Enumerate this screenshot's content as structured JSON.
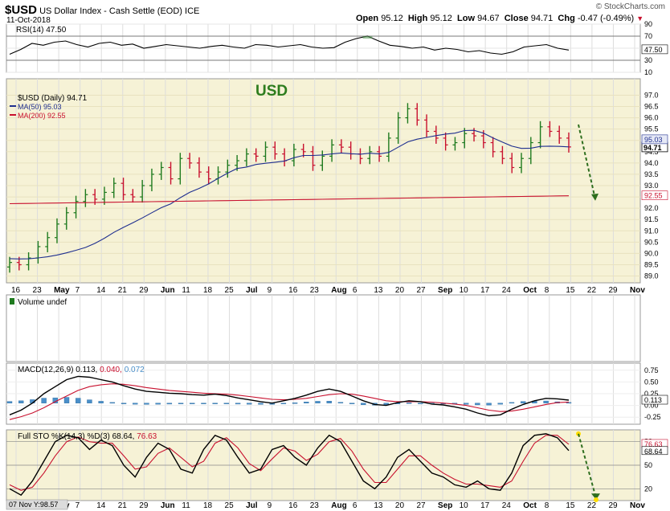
{
  "header": {
    "symbol": "$USD",
    "name": "US Dollar Index - Cash Settle (EOD)",
    "exchange": "ICE",
    "date": "11-Oct-2018",
    "watermark": "© StockCharts.com",
    "ohlc": {
      "open_label": "Open",
      "open": "95.12",
      "high_label": "High",
      "high": "95.12",
      "low_label": "Low",
      "low": "94.67",
      "close_label": "Close",
      "close": "94.71",
      "chg_label": "Chg",
      "chg": "-0.47 (-0.49%)"
    }
  },
  "annotation": {
    "text": "USD",
    "color": "#2e7d1e"
  },
  "colors": {
    "up": "#1e7a1e",
    "down": "#c8102e",
    "ma50": "#1f2f8f",
    "ma200": "#c8102e",
    "macd_hist": "#4a8fc9",
    "bg_price": "#f6f2d6",
    "bg_panel": "#ffffff"
  },
  "chart_data": [
    {
      "type": "line",
      "panel": "RSI",
      "title": "RSI(14) 47.50",
      "ylim": [
        10,
        90
      ],
      "yticks": [
        90,
        70,
        50,
        30,
        10
      ],
      "reference_lines": [
        70,
        30
      ],
      "last_label": "47.50",
      "series": [
        {
          "name": "RSI(14)",
          "values": [
            40,
            48,
            58,
            55,
            60,
            62,
            56,
            52,
            58,
            60,
            55,
            57,
            50,
            53,
            56,
            54,
            52,
            50,
            53,
            55,
            52,
            50,
            56,
            55,
            52,
            54,
            56,
            52,
            50,
            51,
            60,
            66,
            70,
            62,
            55,
            53,
            50,
            52,
            47,
            50,
            48,
            44,
            46,
            42,
            40,
            44,
            52,
            54,
            56,
            50,
            47
          ]
        }
      ]
    },
    {
      "type": "bar",
      "panel": "Price",
      "title": "$USD (Daily) 94.71",
      "ylim": [
        88.7,
        97.3
      ],
      "yticks": [
        97.0,
        96.5,
        96.0,
        95.5,
        95.0,
        94.5,
        94.0,
        93.5,
        93.0,
        92.5,
        92.0,
        91.5,
        91.0,
        90.5,
        90.0,
        89.5,
        89.0
      ],
      "x_tick_labels": [
        "16",
        "23",
        "May",
        "7",
        "14",
        "21",
        "29",
        "Jun",
        "11",
        "18",
        "25",
        "Jul",
        "9",
        "16",
        "23",
        "Aug",
        "6",
        "13",
        "20",
        "27",
        "Sep",
        "10",
        "17",
        "24",
        "Oct",
        "8",
        "15",
        "22",
        "29",
        "Nov"
      ],
      "series": [
        {
          "name": "$USD (Daily)",
          "last": "94.71",
          "closes": [
            89.6,
            89.5,
            89.8,
            90.3,
            90.7,
            91.3,
            91.8,
            92.3,
            92.6,
            92.4,
            92.7,
            93.1,
            92.6,
            92.5,
            93.0,
            93.5,
            93.8,
            93.3,
            94.2,
            94.0,
            93.6,
            93.3,
            93.6,
            93.9,
            94.1,
            94.4,
            94.3,
            94.7,
            94.4,
            94.1,
            94.6,
            94.5,
            93.9,
            94.3,
            94.8,
            94.7,
            94.4,
            94.2,
            94.5,
            94.3,
            95.1,
            96.0,
            96.4,
            95.9,
            95.4,
            95.1,
            94.8,
            94.9,
            95.3,
            95.2,
            94.9,
            94.5,
            94.2,
            93.8,
            94.2,
            94.9,
            95.6,
            95.4,
            95.1,
            94.71
          ]
        },
        {
          "name": "MA(50)",
          "last": "95.03"
        },
        {
          "name": "MA(200)",
          "last": "92.55"
        }
      ]
    },
    {
      "type": "bar",
      "panel": "Volume",
      "title": "Volume undef"
    },
    {
      "type": "line",
      "panel": "MACD",
      "title": "MACD(12,26,9)",
      "values_label": [
        "0.113",
        "0.040",
        "0.072"
      ],
      "ylim": [
        -0.4,
        0.9
      ],
      "yticks": [
        0.75,
        0.5,
        0.25,
        0.0,
        -0.25
      ],
      "last_label": "0.113",
      "series": [
        {
          "name": "MACD",
          "values": [
            -0.2,
            -0.1,
            0.05,
            0.25,
            0.4,
            0.55,
            0.62,
            0.6,
            0.55,
            0.5,
            0.42,
            0.35,
            0.3,
            0.28,
            0.26,
            0.25,
            0.23,
            0.22,
            0.24,
            0.21,
            0.16,
            0.12,
            0.08,
            0.05,
            0.1,
            0.15,
            0.22,
            0.3,
            0.35,
            0.3,
            0.2,
            0.1,
            0.02,
            0.0,
            0.06,
            0.1,
            0.08,
            0.03,
            0.01,
            -0.03,
            -0.08,
            -0.16,
            -0.22,
            -0.2,
            -0.08,
            0.02,
            0.1,
            0.15,
            0.14,
            0.113
          ]
        },
        {
          "name": "Signal",
          "values": [
            -0.3,
            -0.24,
            -0.16,
            -0.05,
            0.08,
            0.2,
            0.32,
            0.4,
            0.44,
            0.46,
            0.45,
            0.42,
            0.38,
            0.35,
            0.32,
            0.3,
            0.28,
            0.26,
            0.25,
            0.24,
            0.22,
            0.19,
            0.16,
            0.13,
            0.12,
            0.13,
            0.15,
            0.19,
            0.23,
            0.25,
            0.24,
            0.2,
            0.15,
            0.1,
            0.08,
            0.08,
            0.08,
            0.07,
            0.05,
            0.03,
            0.0,
            -0.05,
            -0.1,
            -0.13,
            -0.12,
            -0.08,
            -0.03,
            0.02,
            0.06,
            0.072
          ]
        },
        {
          "name": "Histogram",
          "values": [
            0.1,
            0.14,
            0.21,
            0.3,
            0.32,
            0.35,
            0.3,
            0.2,
            0.11,
            0.04,
            -0.03,
            -0.07,
            -0.08,
            -0.07,
            -0.06,
            -0.05,
            -0.05,
            -0.04,
            -0.01,
            -0.03,
            -0.06,
            -0.07,
            -0.08,
            -0.08,
            -0.02,
            0.02,
            0.07,
            0.11,
            0.12,
            0.05,
            -0.04,
            -0.1,
            -0.13,
            -0.1,
            -0.02,
            0.02,
            0.0,
            -0.04,
            -0.04,
            -0.06,
            -0.08,
            -0.11,
            -0.12,
            -0.07,
            0.04,
            0.1,
            0.13,
            0.13,
            0.08,
            0.04
          ]
        }
      ]
    },
    {
      "type": "line",
      "panel": "Full STO",
      "title": "Full STO %K(14,3) %D(3)",
      "values_label": [
        "68.64",
        "76.63"
      ],
      "ylim": [
        5,
        95
      ],
      "yticks": [
        80,
        50,
        20
      ],
      "reference_lines": [
        80,
        20
      ],
      "last_labels": [
        "76.63",
        "68.64"
      ],
      "series": [
        {
          "name": "%K",
          "values": [
            20,
            12,
            30,
            55,
            80,
            88,
            85,
            70,
            82,
            75,
            50,
            35,
            60,
            78,
            70,
            45,
            40,
            70,
            88,
            82,
            60,
            40,
            45,
            70,
            75,
            60,
            50,
            72,
            88,
            80,
            55,
            30,
            20,
            35,
            60,
            70,
            55,
            40,
            35,
            25,
            22,
            30,
            20,
            18,
            40,
            75,
            88,
            90,
            85,
            68.64
          ]
        },
        {
          "name": "%D",
          "values": [
            25,
            18,
            22,
            40,
            62,
            80,
            86,
            80,
            78,
            78,
            62,
            45,
            48,
            65,
            72,
            60,
            48,
            55,
            78,
            85,
            72,
            52,
            43,
            58,
            72,
            68,
            56,
            64,
            80,
            84,
            68,
            45,
            28,
            28,
            45,
            62,
            62,
            50,
            40,
            32,
            26,
            26,
            24,
            22,
            30,
            55,
            78,
            88,
            88,
            76.63
          ]
        }
      ]
    }
  ],
  "status_bar": {
    "text": "07 Nov Y:98.57"
  }
}
